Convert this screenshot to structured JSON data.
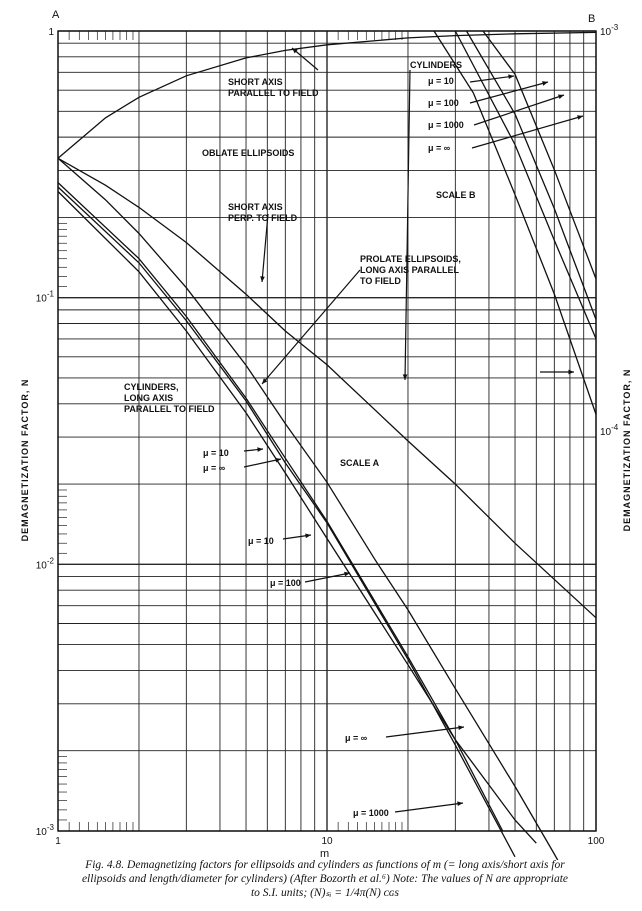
{
  "chart_data": {
    "type": "line",
    "corner_labels": {
      "a": "A",
      "b": "B"
    },
    "xlabel": "m",
    "ylabel": "DEMAGNETIZATION FACTOR, N",
    "ylabel_right": "DEMAGNETIZATION FACTOR, N",
    "x_scale": "log",
    "y_scale": "log",
    "xlim": [
      1,
      100
    ],
    "ylim": [
      0.001,
      1
    ],
    "ylim_scale_b": [
      1e-05,
      0.001
    ],
    "grid": true,
    "x_ticks": [
      {
        "value": 1,
        "label": "1"
      },
      {
        "value": 10,
        "label": "10"
      },
      {
        "value": 100,
        "label": "100"
      }
    ],
    "y_ticks_left": [
      {
        "value": 1,
        "label": "1",
        "exp": ""
      },
      {
        "value": 0.1,
        "label": "10",
        "exp": "-1"
      },
      {
        "value": 0.01,
        "label": "10",
        "exp": "-2"
      },
      {
        "value": 0.001,
        "label": "10",
        "exp": "-3"
      }
    ],
    "y_ticks_right": [
      {
        "value": 0.001,
        "label": "10",
        "exp": "-3"
      },
      {
        "value": 0.0001,
        "label": "10",
        "exp": "-4"
      }
    ],
    "series": [
      {
        "scale": "A",
        "x": [
          1,
          1.5,
          2,
          3,
          5,
          7,
          10,
          20,
          30,
          50,
          100
        ],
        "values": [
          0.333,
          0.472,
          0.564,
          0.679,
          0.793,
          0.846,
          0.888,
          0.942,
          0.961,
          0.976,
          0.988
        ]
      },
      {
        "scale": "A",
        "x": [
          1,
          1.5,
          2,
          3,
          5,
          7,
          10,
          20,
          30,
          50,
          100
        ],
        "values": [
          0.333,
          0.264,
          0.218,
          0.161,
          0.103,
          0.075,
          0.056,
          0.029,
          0.02,
          0.012,
          0.0063
        ]
      },
      {
        "scale": "A",
        "x": [
          1,
          1.5,
          2,
          3,
          5,
          7,
          10,
          15,
          20,
          30,
          50,
          70,
          100
        ],
        "values": [
          0.333,
          0.233,
          0.174,
          0.109,
          0.0558,
          0.0337,
          0.0203,
          0.0105,
          0.00675,
          0.00342,
          0.00147,
          0.00082,
          0.00043
        ]
      },
      {
        "scale": "A",
        "x": [
          1,
          2,
          3,
          5,
          7,
          10,
          20,
          30,
          45
        ],
        "values": [
          0.27,
          0.14,
          0.085,
          0.042,
          0.025,
          0.0145,
          0.0045,
          0.0022,
          0.001
        ]
      },
      {
        "scale": "A",
        "x": [
          1,
          2,
          3,
          5,
          7,
          10,
          20,
          30,
          50
        ],
        "values": [
          0.26,
          0.135,
          0.082,
          0.041,
          0.024,
          0.0143,
          0.0044,
          0.0021,
          0.0008
        ]
      },
      {
        "scale": "A",
        "x": [
          1,
          2,
          3,
          5,
          7,
          10,
          20,
          30,
          50,
          60
        ],
        "values": [
          0.25,
          0.125,
          0.075,
          0.037,
          0.022,
          0.0125,
          0.0042,
          0.0022,
          0.0011,
          0.0009
        ]
      },
      {
        "scale": "B",
        "x": [
          25,
          35,
          50,
          70,
          100
        ],
        "values": [
          0.001,
          0.0007,
          0.00039,
          0.00022,
          0.00011
        ]
      },
      {
        "scale": "B",
        "x": [
          30,
          50,
          70,
          100
        ],
        "values": [
          0.001,
          0.00052,
          0.0003,
          0.00017
        ]
      },
      {
        "scale": "B",
        "x": [
          33,
          50,
          70,
          100
        ],
        "values": [
          0.001,
          0.00062,
          0.00036,
          0.00019
        ]
      },
      {
        "scale": "B",
        "x": [
          38,
          50,
          70,
          100
        ],
        "values": [
          0.001,
          0.00078,
          0.00045,
          0.00024
        ]
      }
    ],
    "annotations": [
      {
        "lines": [
          "SHORT AXIS",
          "PARALLEL TO FIELD"
        ]
      },
      {
        "lines": [
          "OBLATE ELLIPSOIDS"
        ]
      },
      {
        "lines": [
          "SHORT AXIS",
          "PERP. TO FIELD"
        ]
      },
      {
        "lines": [
          "PROLATE ELLIPSOIDS,",
          "LONG AXIS PARALLEL",
          "TO FIELD"
        ]
      },
      {
        "lines": [
          "CYLINDERS,",
          "LONG AXIS",
          "PARALLEL TO FIELD"
        ]
      },
      {
        "lines": [
          "SCALE A"
        ]
      },
      {
        "lines": [
          "SCALE B"
        ]
      },
      {
        "lines": [
          "CYLINDERS"
        ]
      },
      {
        "lines": [
          "μ = 10"
        ]
      },
      {
        "lines": [
          "μ = 100"
        ]
      },
      {
        "lines": [
          "μ = 1000"
        ]
      },
      {
        "lines": [
          "μ = ∞"
        ]
      },
      {
        "lines": [
          "μ = 10"
        ]
      },
      {
        "lines": [
          "μ = ∞"
        ]
      },
      {
        "lines": [
          "μ = 10"
        ]
      },
      {
        "lines": [
          "μ = 100"
        ]
      },
      {
        "lines": [
          "μ = ∞"
        ]
      },
      {
        "lines": [
          "μ = 1000"
        ]
      }
    ]
  },
  "caption": {
    "line1": "Fig. 4.8. Demagnetizing factors for ellipsoids and cylinders as functions of m (= long axis/short axis for",
    "line2": "ellipsoids and length/diameter for cylinders) (After Bozorth et al.⁶) Note: The values of N are appropriate",
    "line3": "to S.I. units; (N)ₛᵢ = 1/4π(N) ᴄɢs"
  }
}
